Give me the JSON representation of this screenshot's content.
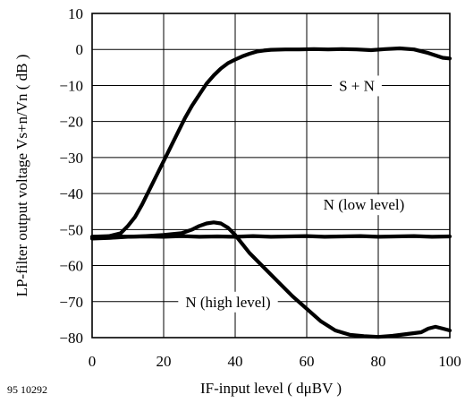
{
  "figure_id": "95 10292",
  "chart_data": {
    "type": "line",
    "title": "",
    "xlabel": "IF-input level ( dμBV )",
    "ylabel": "LP-filter output voltage Vs+n/Vn ( dB )",
    "xlim": [
      0,
      100
    ],
    "ylim": [
      -80,
      10
    ],
    "x_ticks": [
      0,
      20,
      40,
      60,
      80,
      100
    ],
    "y_ticks": [
      10,
      0,
      -10,
      -20,
      -30,
      -40,
      -50,
      -60,
      -70,
      -80
    ],
    "x_tick_labels": [
      "0",
      "20",
      "40",
      "60",
      "80",
      "100"
    ],
    "y_tick_labels": [
      "10",
      "0",
      "−10",
      "−20",
      "−30",
      "−40",
      "−50",
      "−60",
      "−70",
      "−80"
    ],
    "grid": true,
    "series": [
      {
        "name": "S + N",
        "x": [
          0,
          4,
          8,
          10,
          12,
          14,
          16,
          18,
          20,
          22,
          24,
          26,
          28,
          30,
          32,
          34,
          36,
          38,
          40,
          42,
          44,
          46,
          48,
          50,
          54,
          58,
          62,
          66,
          70,
          74,
          78,
          82,
          86,
          90,
          94,
          98,
          100
        ],
        "y": [
          -52,
          -52,
          -51,
          -49,
          -46.5,
          -43,
          -39,
          -35,
          -31,
          -27,
          -23,
          -19,
          -15.5,
          -12.5,
          -9.5,
          -7.2,
          -5.3,
          -3.8,
          -2.8,
          -1.9,
          -1.2,
          -0.6,
          -0.3,
          -0.1,
          0,
          0,
          0.1,
          0,
          0.1,
          0,
          -0.2,
          0.1,
          0.3,
          0,
          -1,
          -2.3,
          -2.5
        ]
      },
      {
        "name": "N (low level)",
        "x": [
          0,
          5,
          10,
          15,
          20,
          25,
          30,
          35,
          40,
          45,
          50,
          55,
          60,
          65,
          70,
          75,
          80,
          85,
          90,
          95,
          100
        ],
        "y": [
          -52,
          -51.8,
          -52,
          -51.9,
          -52,
          -51.8,
          -52,
          -51.9,
          -52,
          -51.8,
          -52,
          -51.9,
          -51.8,
          -52,
          -51.9,
          -51.8,
          -52,
          -51.9,
          -51.8,
          -52,
          -51.9
        ]
      },
      {
        "name": "N (high level)",
        "x": [
          0,
          5,
          10,
          15,
          20,
          25,
          28,
          30,
          32,
          34,
          36,
          38,
          40,
          42,
          44,
          48,
          52,
          56,
          60,
          64,
          68,
          72,
          76,
          80,
          84,
          88,
          92,
          94,
          96,
          98,
          100
        ],
        "y": [
          -52.5,
          -52.3,
          -52,
          -51.8,
          -51.5,
          -51,
          -50,
          -49,
          -48.3,
          -48,
          -48.3,
          -49.5,
          -51.5,
          -54,
          -56.5,
          -60.5,
          -64.5,
          -68.5,
          -72,
          -75.5,
          -78,
          -79.2,
          -79.6,
          -79.8,
          -79.5,
          -79,
          -78.5,
          -77.5,
          -77,
          -77.5,
          -78
        ]
      }
    ],
    "annotations": [
      {
        "text": "S + N",
        "x": 74,
        "y": -10
      },
      {
        "text": "N (low level)",
        "x": 76,
        "y": -43
      },
      {
        "text": "N (high level)",
        "x": 38,
        "y": -70
      }
    ]
  }
}
